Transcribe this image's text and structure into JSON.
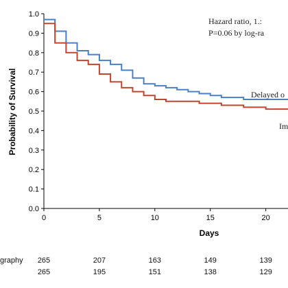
{
  "chart_data": {
    "type": "line",
    "title": "",
    "xlabel": "Days",
    "ylabel": "Probability of Survival",
    "xlim": [
      0,
      22
    ],
    "ylim": [
      0,
      1.0
    ],
    "x_ticks": [
      0,
      5,
      10,
      15,
      20
    ],
    "y_ticks": [
      0.0,
      0.1,
      0.2,
      0.3,
      0.4,
      0.5,
      0.6,
      0.7,
      0.8,
      0.9,
      1.0
    ],
    "x_tick_labels": [
      "0",
      "5",
      "10",
      "15",
      "20"
    ],
    "y_tick_labels": [
      "0.0",
      "0.1",
      "0.2",
      "0.3",
      "0.4",
      "0.5",
      "0.6",
      "0.7",
      "0.8",
      "0.9",
      "1.0"
    ],
    "grid": false,
    "series": [
      {
        "name": "Delayed o",
        "color": "#4a7fc1",
        "step": true,
        "points": [
          [
            0,
            0.97
          ],
          [
            1,
            0.91
          ],
          [
            2,
            0.85
          ],
          [
            3,
            0.81
          ],
          [
            4,
            0.79
          ],
          [
            5,
            0.76
          ],
          [
            6,
            0.74
          ],
          [
            7,
            0.71
          ],
          [
            8,
            0.67
          ],
          [
            9,
            0.64
          ],
          [
            10,
            0.63
          ],
          [
            11,
            0.62
          ],
          [
            12,
            0.61
          ],
          [
            13,
            0.6
          ],
          [
            14,
            0.59
          ],
          [
            15,
            0.58
          ],
          [
            16,
            0.57
          ],
          [
            17,
            0.57
          ],
          [
            18,
            0.56
          ],
          [
            19,
            0.56
          ],
          [
            22,
            0.56
          ]
        ]
      },
      {
        "name": "Im",
        "color": "#c0452f",
        "step": true,
        "points": [
          [
            0,
            0.95
          ],
          [
            1,
            0.85
          ],
          [
            2,
            0.8
          ],
          [
            3,
            0.76
          ],
          [
            4,
            0.74
          ],
          [
            5,
            0.69
          ],
          [
            6,
            0.65
          ],
          [
            7,
            0.62
          ],
          [
            8,
            0.6
          ],
          [
            9,
            0.58
          ],
          [
            10,
            0.56
          ],
          [
            11,
            0.55
          ],
          [
            13,
            0.55
          ],
          [
            14,
            0.54
          ],
          [
            15,
            0.54
          ],
          [
            16,
            0.53
          ],
          [
            17,
            0.53
          ],
          [
            18,
            0.52
          ],
          [
            19,
            0.52
          ],
          [
            20,
            0.51
          ],
          [
            22,
            0.51
          ]
        ]
      }
    ],
    "annotations": [
      "Hazard ratio, 1.:",
      "P=0.06 by log-ra"
    ],
    "risk_table": {
      "rows": [
        {
          "label": "graphy",
          "values": [
            "265",
            "207",
            "163",
            "149",
            "139"
          ]
        },
        {
          "label": "",
          "values": [
            "265",
            "195",
            "151",
            "138",
            "129"
          ]
        }
      ]
    }
  }
}
